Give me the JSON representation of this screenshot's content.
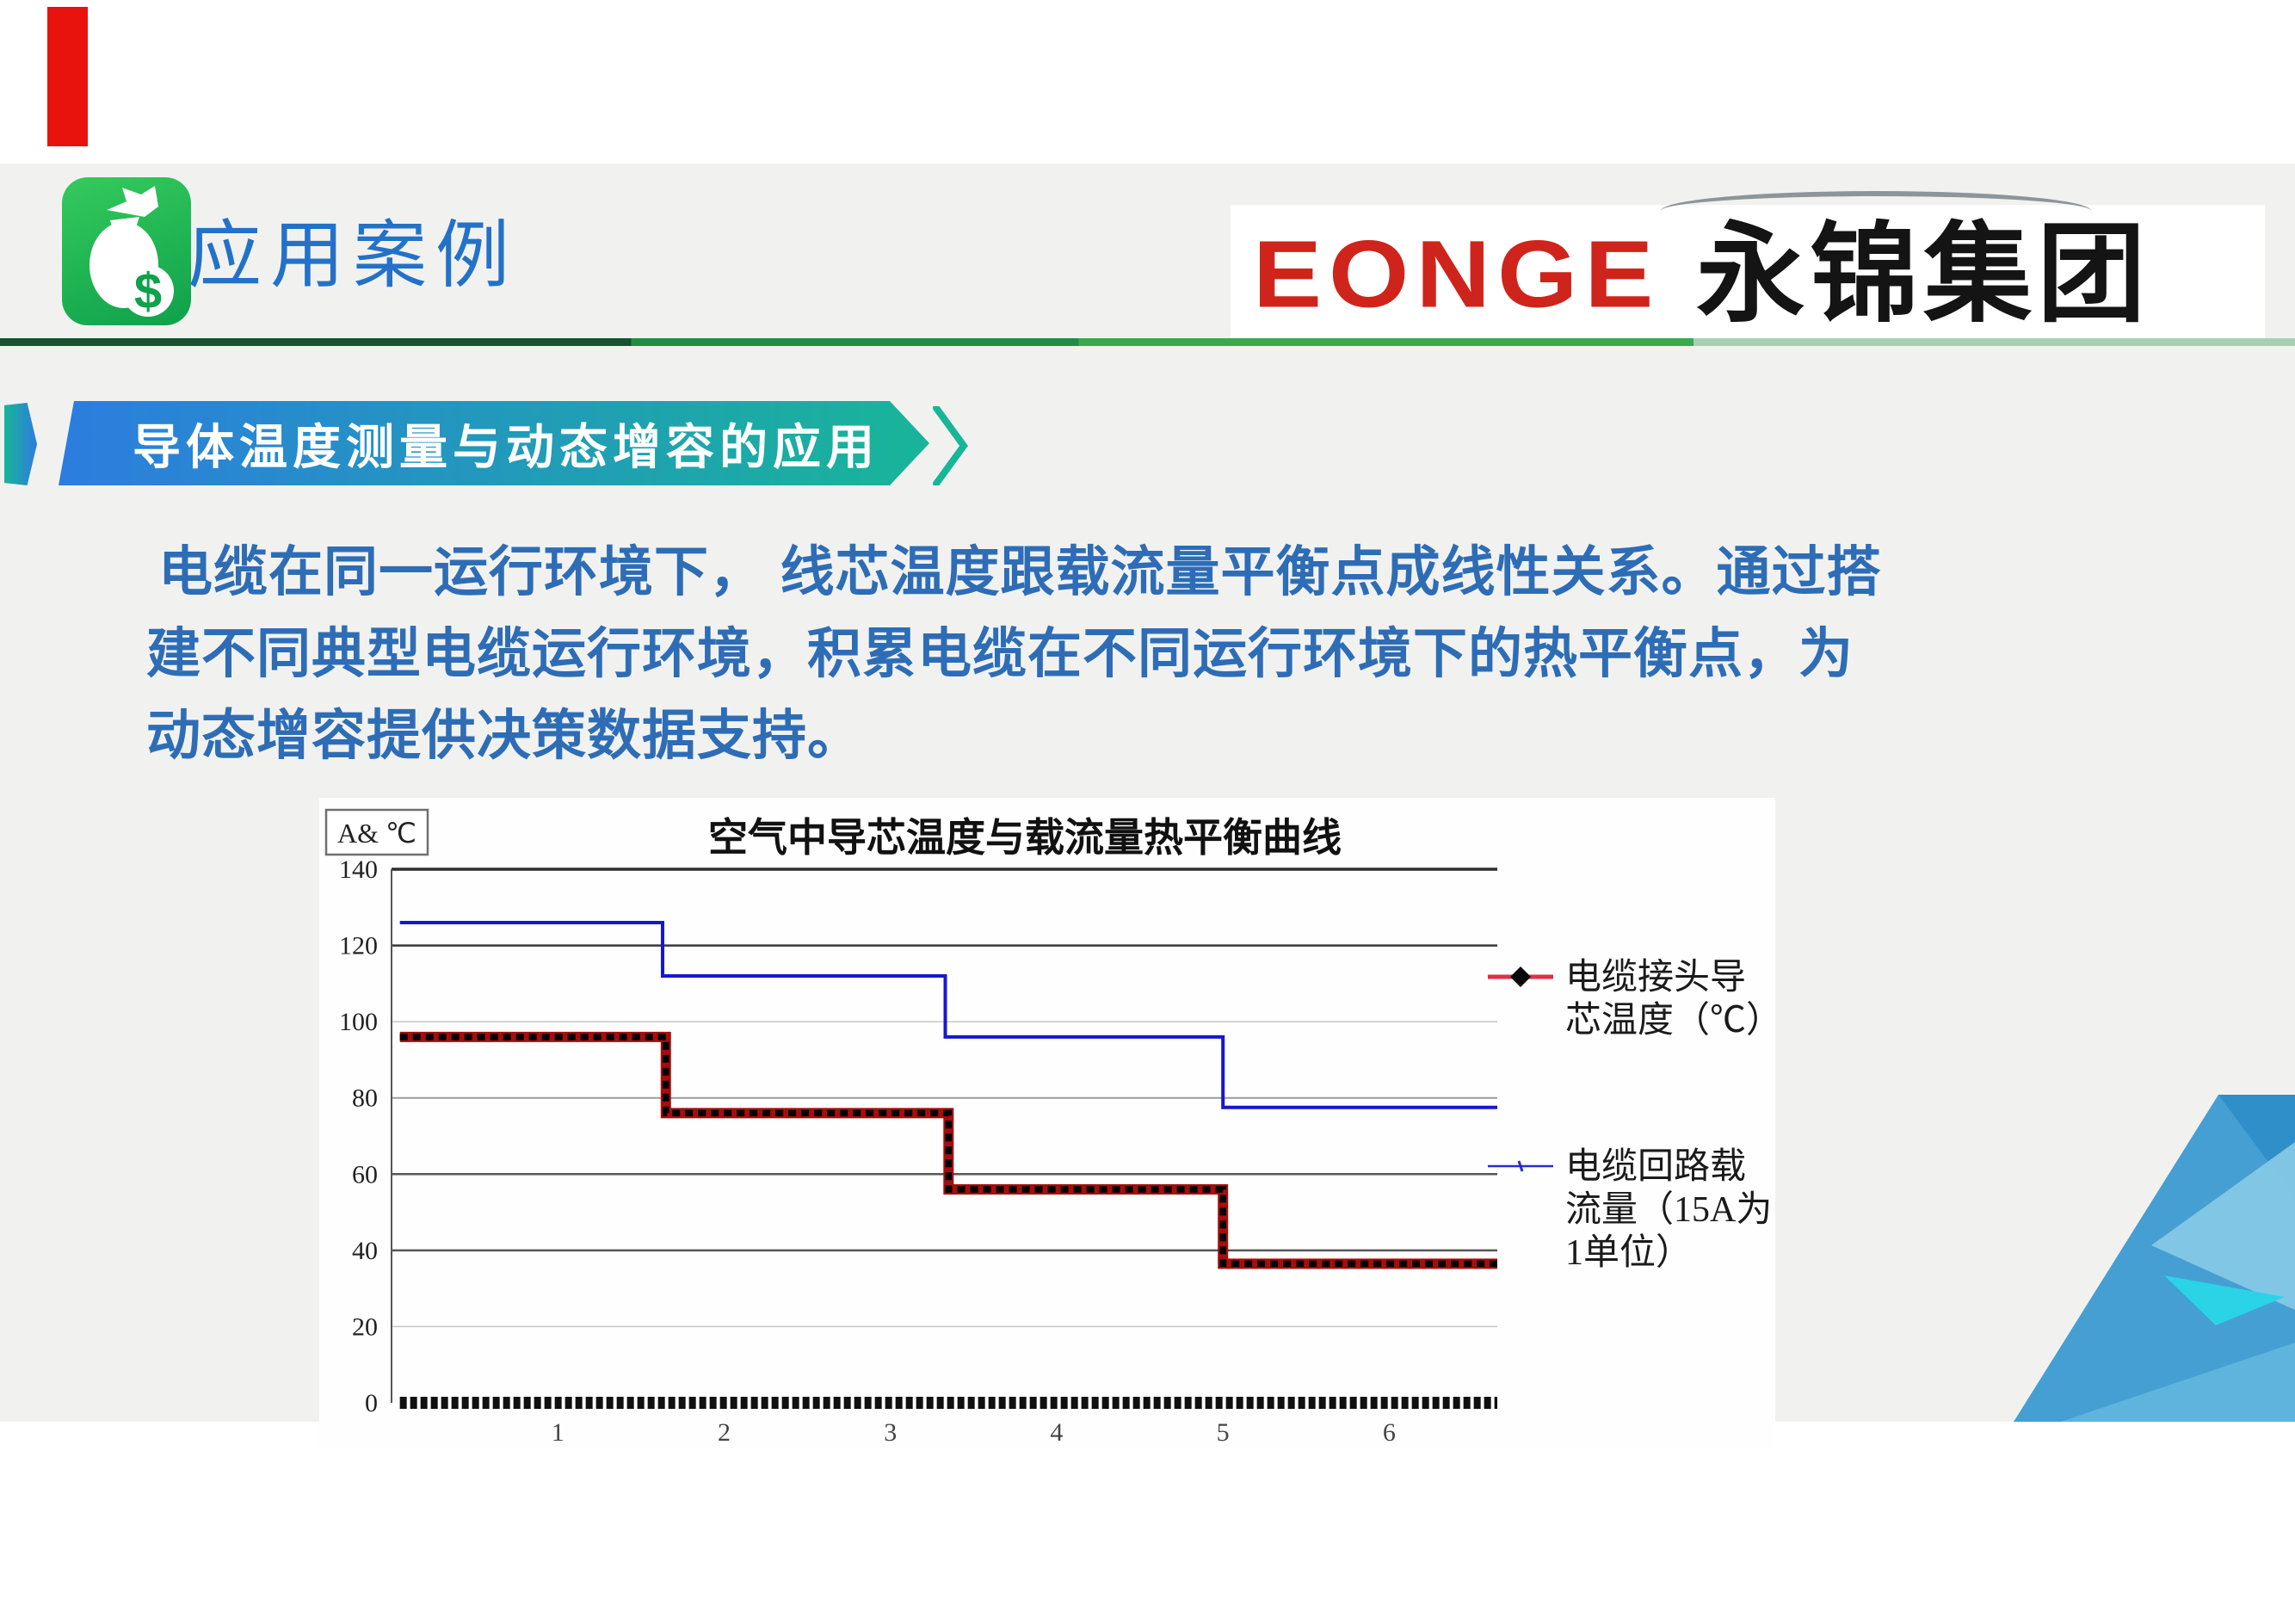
{
  "slide": {
    "background": "#ffffff",
    "content_band_color": "#f1f2f0"
  },
  "decor": {
    "red_bar_color": "#e8130d"
  },
  "header": {
    "icon": "money-bag-icon",
    "icon_colors": [
      "#35ca5d",
      "#0fa14b"
    ],
    "title": "应用案例",
    "title_color": "#2471c8"
  },
  "logo": {
    "latin": "EONGE",
    "latin_color": "#cf241b",
    "cjk": "永锦集团",
    "cjk_color": "#141414"
  },
  "divider": {
    "colors": [
      "#14532f",
      "#1d8f44",
      "#36ab4b",
      "#a9cfb2"
    ]
  },
  "banner": {
    "label": "导体温度测量与动态增容的应用",
    "gradient_from": "#2d7ce0",
    "gradient_to": "#18b598",
    "text_color": "#ffffff"
  },
  "paragraph": {
    "color": "#2e6db6",
    "lines": [
      "电缆在同一运行环境下， 线芯温度跟载流量平衡点成线性关系。通过搭",
      "建不同典型电缆运行环境，积累电缆在不同运行环境下的热平衡点，为",
      "动态增容提供决策数据支持。"
    ]
  },
  "chart_data": {
    "type": "line",
    "title": "空气中导芯温度与载流量热平衡曲线",
    "unit_label": "A& ℃",
    "xlabel": "",
    "ylabel": "",
    "xlim": [
      0,
      6.65
    ],
    "ylim": [
      0,
      140
    ],
    "x_ticks": [
      1,
      2,
      3,
      4,
      5,
      6
    ],
    "y_ticks": [
      0,
      20,
      40,
      60,
      80,
      100,
      120,
      140
    ],
    "grid": "horizontal-only",
    "legend_position": "right",
    "y_gridline_styles": {
      "20": {
        "color": "#c6c6c6",
        "width": 1.5
      },
      "40": {
        "color": "#565656",
        "width": 2.5
      },
      "60": {
        "color": "#565656",
        "width": 2.5
      },
      "80": {
        "color": "#9b9b9b",
        "width": 2
      },
      "100": {
        "color": "#c6c6c6",
        "width": 1.5
      },
      "120": {
        "color": "#383838",
        "width": 2.5
      },
      "140": {
        "color": "#2d2d2d",
        "width": 3.5
      }
    },
    "baseline": {
      "y": 0,
      "color": "#101010",
      "width": 14,
      "dash": "8 4"
    },
    "series": [
      {
        "name": "电缆接头导芯温度（℃）",
        "legend_lines": [
          "电缆接头导",
          "芯温度（℃）"
        ],
        "color": "#a80d0d",
        "marker": "black-diamond",
        "width": 12,
        "type": "step",
        "points": [
          [
            0.05,
            96
          ],
          [
            1.65,
            96
          ],
          [
            1.65,
            76
          ],
          [
            3.35,
            76
          ],
          [
            3.35,
            56
          ],
          [
            5,
            56
          ],
          [
            5,
            36.5
          ],
          [
            6.65,
            36.5
          ]
        ]
      },
      {
        "name": "电缆回路载流量（15A为1单位）",
        "legend_lines": [
          "电缆回路载",
          "流量（15A为",
          "1单位）"
        ],
        "color": "#1717cf",
        "marker": "none",
        "width": 4,
        "type": "step",
        "points": [
          [
            0.05,
            126
          ],
          [
            1.63,
            126
          ],
          [
            1.63,
            112
          ],
          [
            3.33,
            112
          ],
          [
            3.33,
            96
          ],
          [
            5,
            96
          ],
          [
            5,
            77.5
          ],
          [
            6.65,
            77.5
          ]
        ]
      }
    ]
  },
  "corner_art": {
    "colors": [
      "#459fd3",
      "#2f8fc8",
      "#85c8e6",
      "#2bd3e6",
      "#5fb4dd"
    ]
  }
}
